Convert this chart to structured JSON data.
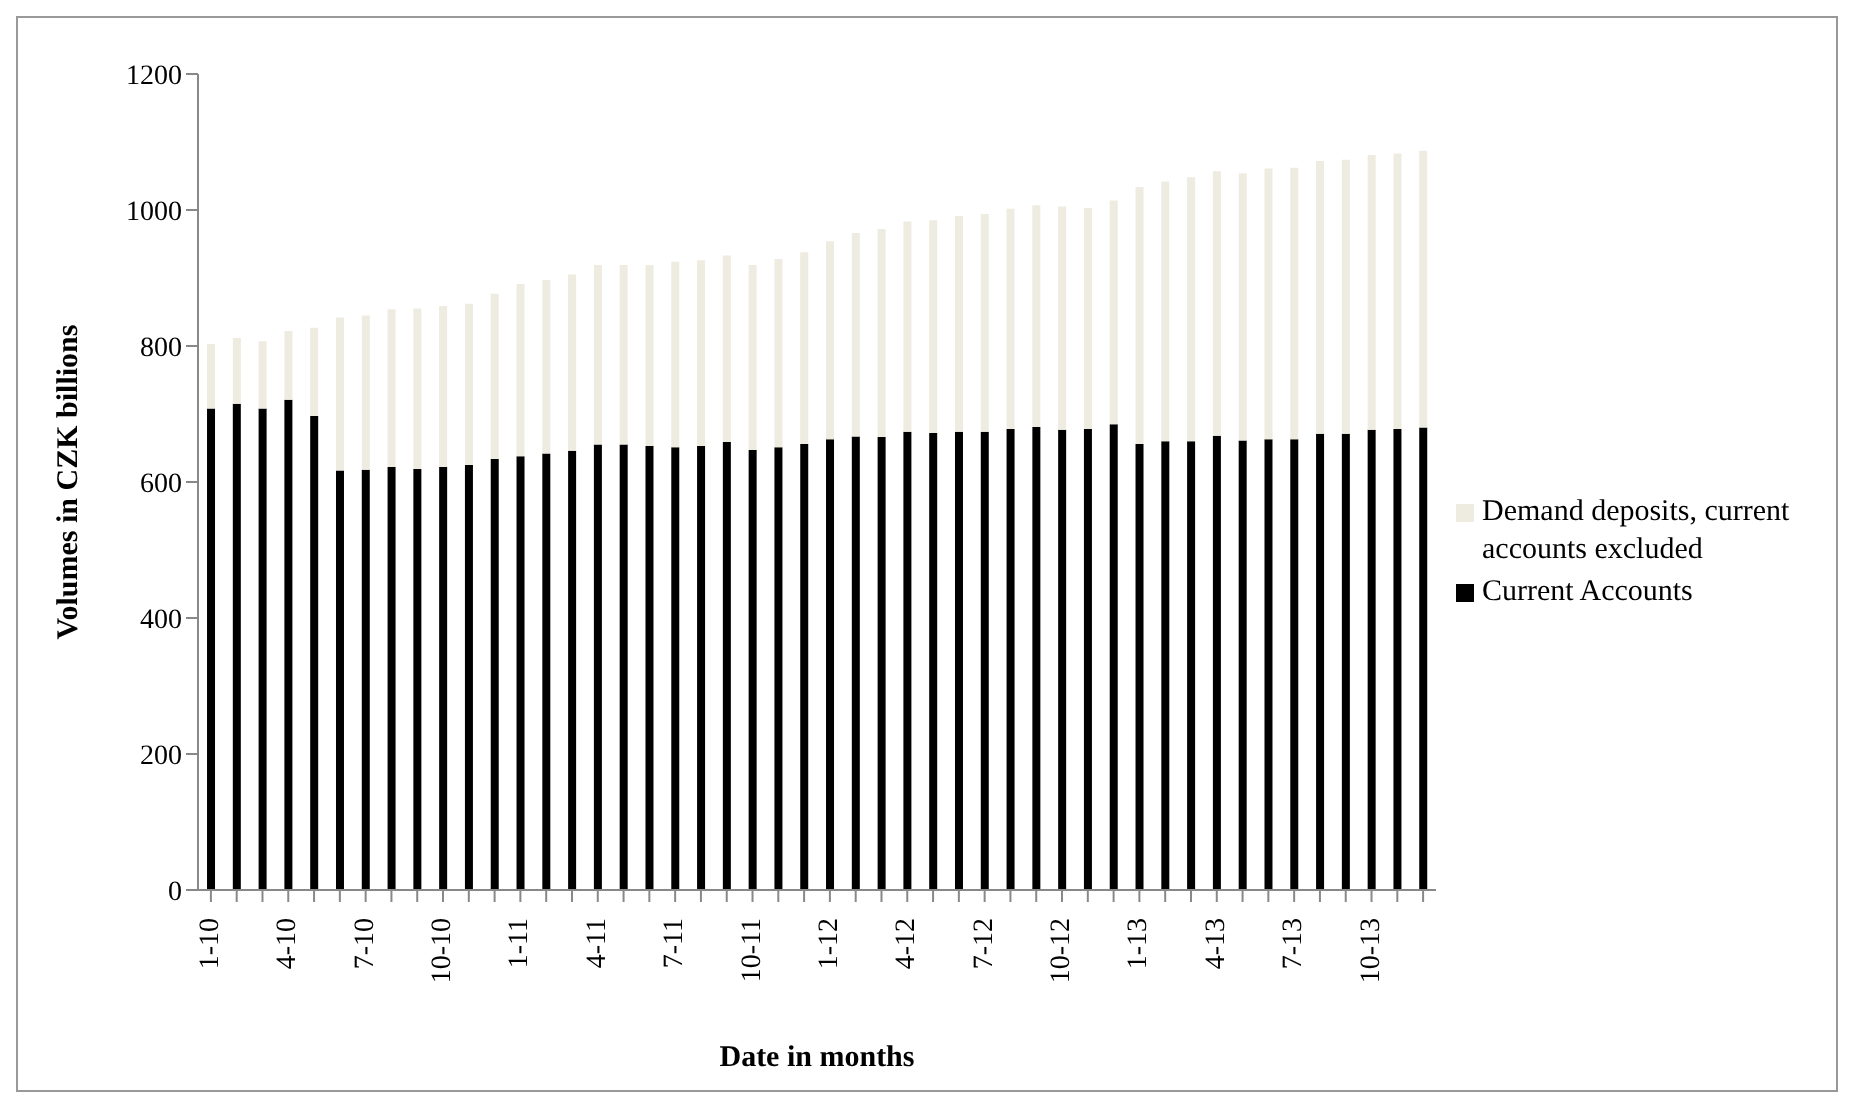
{
  "chart_data": {
    "type": "bar",
    "stacked": true,
    "xlabel": "Date in months",
    "ylabel": "Volumes in CZK billions",
    "categories": [
      "1-10",
      null,
      null,
      "4-10",
      null,
      null,
      "7-10",
      null,
      null,
      "10-10",
      null,
      null,
      "1-11",
      null,
      null,
      "4-11",
      null,
      null,
      "7-11",
      null,
      null,
      "10-11",
      null,
      null,
      "1-12",
      null,
      null,
      "4-12",
      null,
      null,
      "7-12",
      null,
      null,
      "10-12",
      null,
      null,
      "1-13",
      null,
      null,
      "4-13",
      null,
      null,
      "7-13",
      null,
      null,
      "10-13",
      null,
      null
    ],
    "series": [
      {
        "name": "Current Accounts",
        "color": "#000000",
        "values": [
          708,
          715,
          708,
          721,
          697,
          617,
          618,
          622,
          619,
          622,
          625,
          634,
          638,
          642,
          646,
          655,
          655,
          653,
          651,
          653,
          659,
          647,
          651,
          656,
          663,
          667,
          666,
          674,
          672,
          674,
          674,
          678,
          681,
          677,
          678,
          685,
          656,
          660,
          660,
          668,
          661,
          663,
          663,
          671,
          671,
          677,
          678,
          680
        ]
      },
      {
        "name": "Demand deposits, current accounts excluded",
        "color": "#eeebe0",
        "values": [
          95,
          97,
          99,
          101,
          130,
          225,
          227,
          232,
          236,
          237,
          237,
          243,
          253,
          255,
          259,
          264,
          264,
          266,
          273,
          273,
          274,
          272,
          277,
          282,
          291,
          299,
          306,
          309,
          313,
          317,
          320,
          324,
          326,
          328,
          325,
          329,
          378,
          382,
          388,
          389,
          393,
          398,
          399,
          401,
          403,
          404,
          405,
          407
        ]
      }
    ],
    "ylim": [
      0,
      1200
    ],
    "yticks": [
      0,
      200,
      400,
      600,
      800,
      1000,
      1200
    ],
    "legend": "right"
  }
}
